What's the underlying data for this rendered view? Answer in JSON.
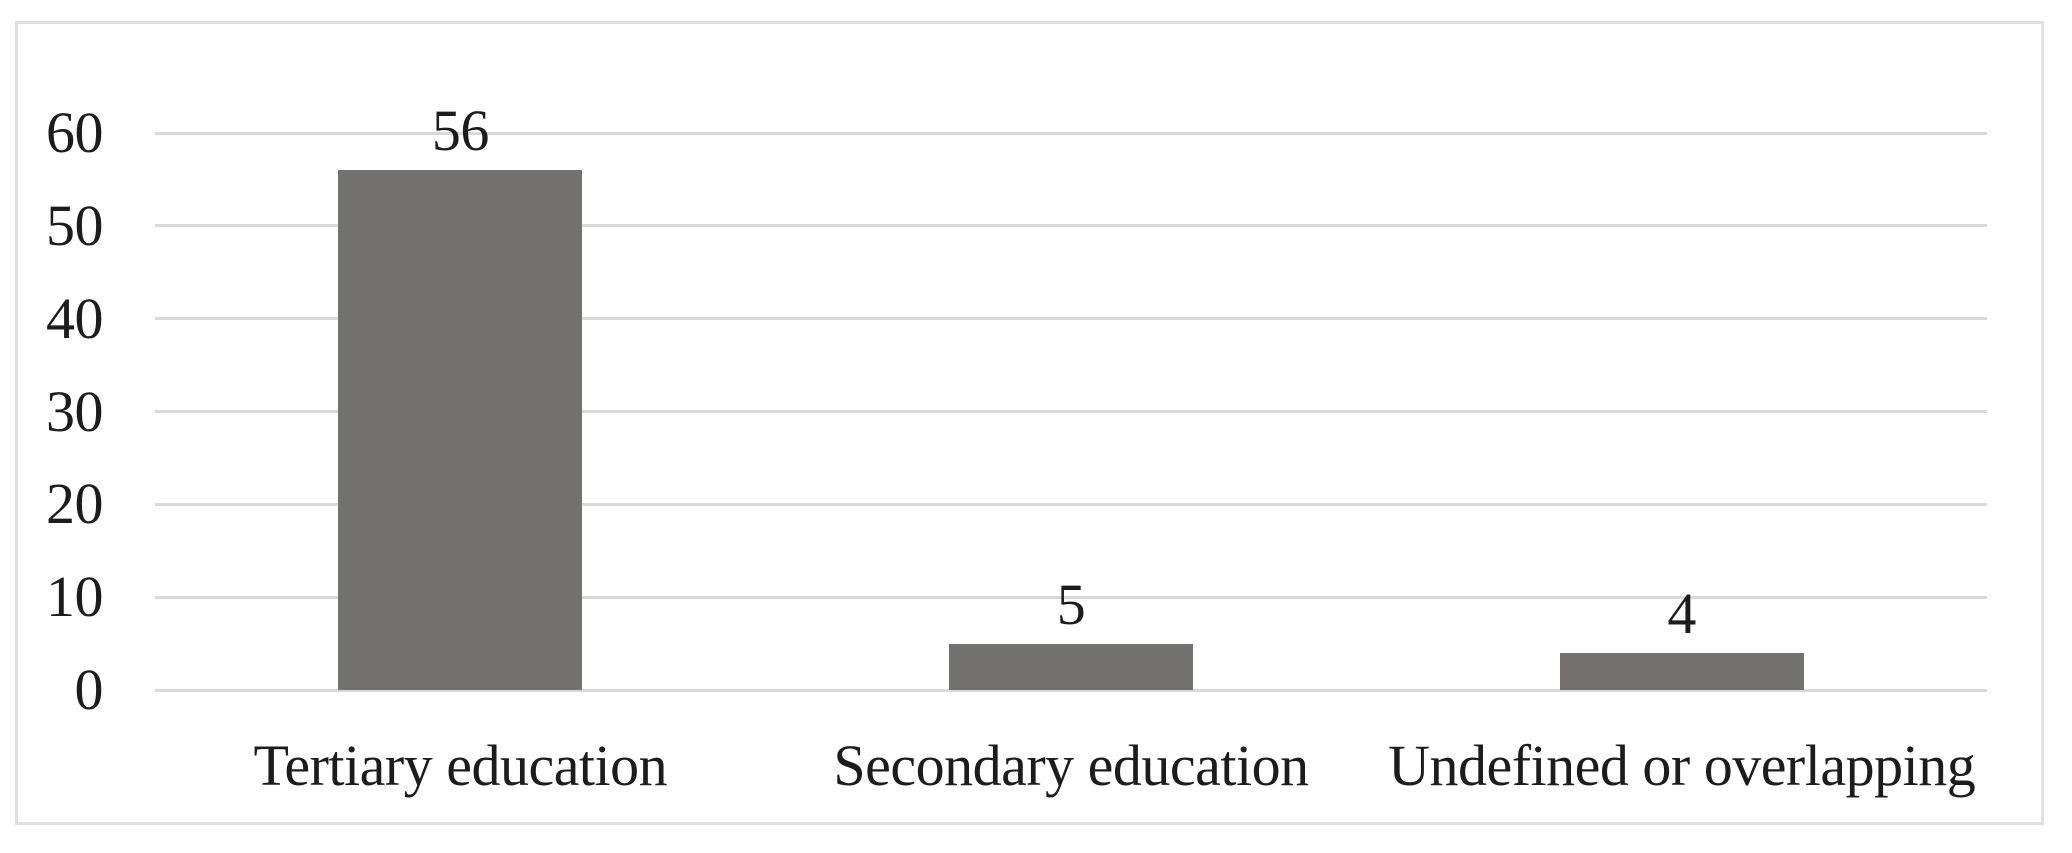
{
  "figure": {
    "type": "bar-chart-figure",
    "title": "",
    "background_color": "#ffffff",
    "frame_border_color": "#e0e0e0"
  },
  "chart_data": {
    "type": "bar",
    "categories": [
      "Tertiary education",
      "Secondary education",
      "Undefined or overlapping"
    ],
    "values": [
      56,
      5,
      4
    ],
    "data_labels": [
      "56",
      "5",
      "4"
    ],
    "title": "",
    "xlabel": "",
    "ylabel": "",
    "ylim": [
      0,
      60
    ],
    "yticks": [
      0,
      10,
      20,
      30,
      40,
      50,
      60
    ],
    "grid": true,
    "legend": false,
    "bar_color": "#737070",
    "gridline_color": "#d9d9d9",
    "text_color": "#1c1c1c"
  }
}
